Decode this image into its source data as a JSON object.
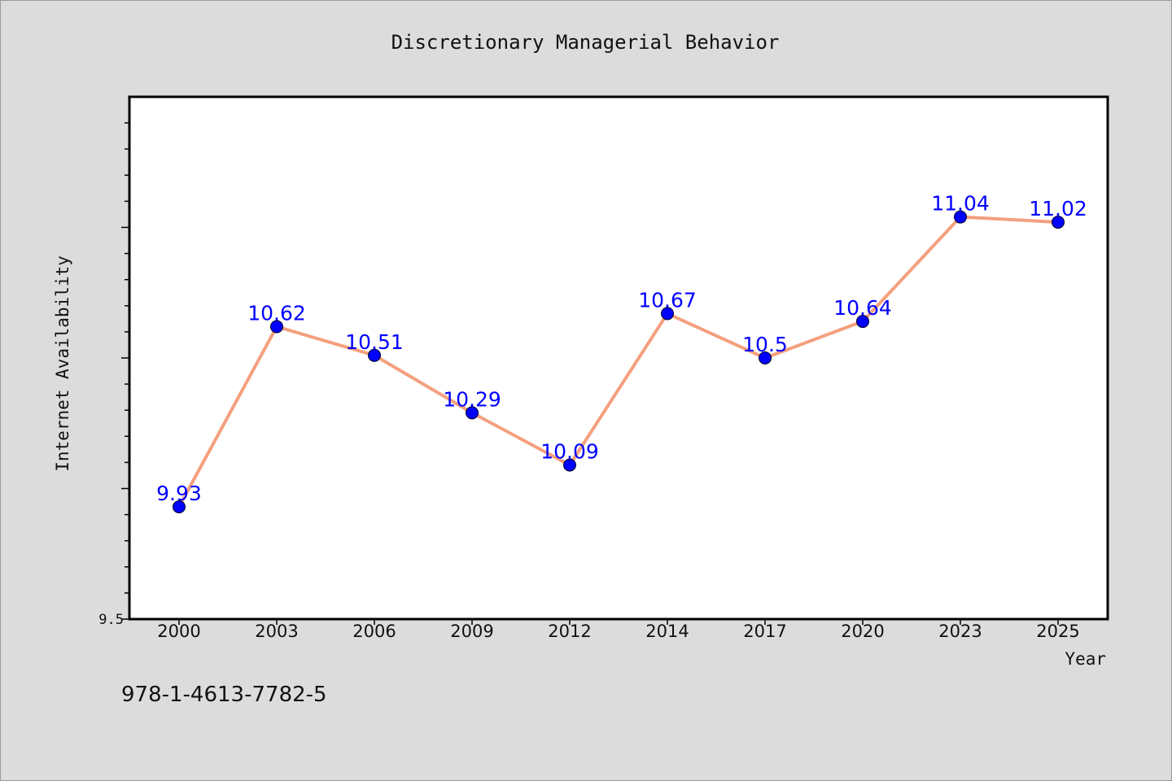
{
  "chart_data": {
    "type": "line",
    "title": "Discretionary Managerial Behavior",
    "xlabel": "Year",
    "ylabel": "Internet Availability",
    "categories": [
      "2000",
      "2003",
      "2006",
      "2009",
      "2012",
      "2014",
      "2017",
      "2020",
      "2023",
      "2025"
    ],
    "series": [
      {
        "values": [
          9.93,
          10.62,
          10.51,
          10.29,
          10.09,
          10.67,
          10.5,
          10.64,
          11.04,
          11.02
        ]
      }
    ],
    "ylim": [
      9.5,
      11.5
    ],
    "yticks_labeled": [
      "9.5"
    ],
    "grid": false,
    "legend": "none"
  },
  "colors": {
    "background": "#dcdcdc",
    "plot_area": "#ffffff",
    "line": "#f4a07e",
    "marker": "#0000ff",
    "data_label": "#0000ff"
  },
  "footer": {
    "isbn": "978-1-4613-7782-5"
  }
}
